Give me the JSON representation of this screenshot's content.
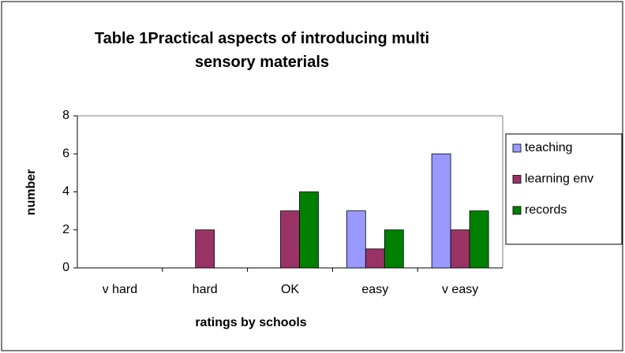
{
  "chart_data": {
    "type": "bar",
    "title": "Table 1Practical aspects of introducing multi sensory materials",
    "x_label": "ratings by schools",
    "y_label": "number",
    "categories": [
      "v hard",
      "hard",
      "OK",
      "easy",
      "v easy"
    ],
    "series": [
      {
        "name": "teaching",
        "color": "#9999ff",
        "values": [
          0,
          0,
          0,
          3,
          6
        ]
      },
      {
        "name": "learning env",
        "color": "#993366",
        "values": [
          0,
          2,
          3,
          1,
          2
        ]
      },
      {
        "name": "records",
        "color": "#008000",
        "values": [
          0,
          0,
          4,
          2,
          3
        ]
      }
    ],
    "ylim": [
      0,
      8
    ],
    "yticks": [
      0,
      2,
      4,
      6,
      8
    ],
    "grid": false,
    "legend": "right"
  }
}
